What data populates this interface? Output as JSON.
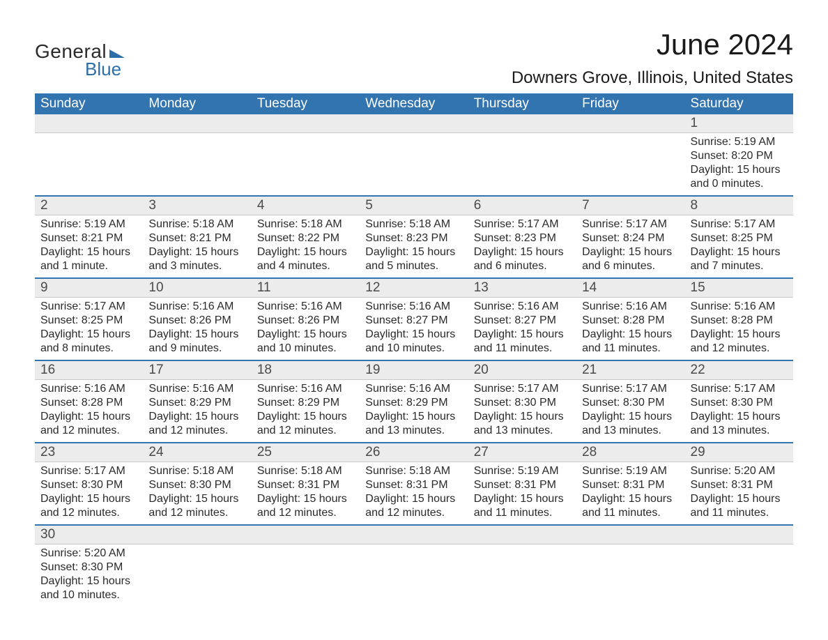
{
  "logo": {
    "text_top": "General",
    "text_bottom": "Blue",
    "accent_color": "#2d6fa8"
  },
  "title": "June 2024",
  "location": "Downers Grove, Illinois, United States",
  "colors": {
    "header_bg": "#3274b0",
    "header_text": "#ffffff",
    "daynum_bg": "#ececec",
    "row_border": "#3274b0",
    "body_text": "#2a2a2a"
  },
  "weekdays": [
    "Sunday",
    "Monday",
    "Tuesday",
    "Wednesday",
    "Thursday",
    "Friday",
    "Saturday"
  ],
  "weeks": [
    [
      null,
      null,
      null,
      null,
      null,
      null,
      {
        "n": "1",
        "sunrise": "5:19 AM",
        "sunset": "8:20 PM",
        "daylight": "15 hours and 0 minutes."
      }
    ],
    [
      {
        "n": "2",
        "sunrise": "5:19 AM",
        "sunset": "8:21 PM",
        "daylight": "15 hours and 1 minute."
      },
      {
        "n": "3",
        "sunrise": "5:18 AM",
        "sunset": "8:21 PM",
        "daylight": "15 hours and 3 minutes."
      },
      {
        "n": "4",
        "sunrise": "5:18 AM",
        "sunset": "8:22 PM",
        "daylight": "15 hours and 4 minutes."
      },
      {
        "n": "5",
        "sunrise": "5:18 AM",
        "sunset": "8:23 PM",
        "daylight": "15 hours and 5 minutes."
      },
      {
        "n": "6",
        "sunrise": "5:17 AM",
        "sunset": "8:23 PM",
        "daylight": "15 hours and 6 minutes."
      },
      {
        "n": "7",
        "sunrise": "5:17 AM",
        "sunset": "8:24 PM",
        "daylight": "15 hours and 6 minutes."
      },
      {
        "n": "8",
        "sunrise": "5:17 AM",
        "sunset": "8:25 PM",
        "daylight": "15 hours and 7 minutes."
      }
    ],
    [
      {
        "n": "9",
        "sunrise": "5:17 AM",
        "sunset": "8:25 PM",
        "daylight": "15 hours and 8 minutes."
      },
      {
        "n": "10",
        "sunrise": "5:16 AM",
        "sunset": "8:26 PM",
        "daylight": "15 hours and 9 minutes."
      },
      {
        "n": "11",
        "sunrise": "5:16 AM",
        "sunset": "8:26 PM",
        "daylight": "15 hours and 10 minutes."
      },
      {
        "n": "12",
        "sunrise": "5:16 AM",
        "sunset": "8:27 PM",
        "daylight": "15 hours and 10 minutes."
      },
      {
        "n": "13",
        "sunrise": "5:16 AM",
        "sunset": "8:27 PM",
        "daylight": "15 hours and 11 minutes."
      },
      {
        "n": "14",
        "sunrise": "5:16 AM",
        "sunset": "8:28 PM",
        "daylight": "15 hours and 11 minutes."
      },
      {
        "n": "15",
        "sunrise": "5:16 AM",
        "sunset": "8:28 PM",
        "daylight": "15 hours and 12 minutes."
      }
    ],
    [
      {
        "n": "16",
        "sunrise": "5:16 AM",
        "sunset": "8:28 PM",
        "daylight": "15 hours and 12 minutes."
      },
      {
        "n": "17",
        "sunrise": "5:16 AM",
        "sunset": "8:29 PM",
        "daylight": "15 hours and 12 minutes."
      },
      {
        "n": "18",
        "sunrise": "5:16 AM",
        "sunset": "8:29 PM",
        "daylight": "15 hours and 12 minutes."
      },
      {
        "n": "19",
        "sunrise": "5:16 AM",
        "sunset": "8:29 PM",
        "daylight": "15 hours and 13 minutes."
      },
      {
        "n": "20",
        "sunrise": "5:17 AM",
        "sunset": "8:30 PM",
        "daylight": "15 hours and 13 minutes."
      },
      {
        "n": "21",
        "sunrise": "5:17 AM",
        "sunset": "8:30 PM",
        "daylight": "15 hours and 13 minutes."
      },
      {
        "n": "22",
        "sunrise": "5:17 AM",
        "sunset": "8:30 PM",
        "daylight": "15 hours and 13 minutes."
      }
    ],
    [
      {
        "n": "23",
        "sunrise": "5:17 AM",
        "sunset": "8:30 PM",
        "daylight": "15 hours and 12 minutes."
      },
      {
        "n": "24",
        "sunrise": "5:18 AM",
        "sunset": "8:30 PM",
        "daylight": "15 hours and 12 minutes."
      },
      {
        "n": "25",
        "sunrise": "5:18 AM",
        "sunset": "8:31 PM",
        "daylight": "15 hours and 12 minutes."
      },
      {
        "n": "26",
        "sunrise": "5:18 AM",
        "sunset": "8:31 PM",
        "daylight": "15 hours and 12 minutes."
      },
      {
        "n": "27",
        "sunrise": "5:19 AM",
        "sunset": "8:31 PM",
        "daylight": "15 hours and 11 minutes."
      },
      {
        "n": "28",
        "sunrise": "5:19 AM",
        "sunset": "8:31 PM",
        "daylight": "15 hours and 11 minutes."
      },
      {
        "n": "29",
        "sunrise": "5:20 AM",
        "sunset": "8:31 PM",
        "daylight": "15 hours and 11 minutes."
      }
    ],
    [
      {
        "n": "30",
        "sunrise": "5:20 AM",
        "sunset": "8:30 PM",
        "daylight": "15 hours and 10 minutes."
      },
      null,
      null,
      null,
      null,
      null,
      null
    ]
  ],
  "labels": {
    "sunrise": "Sunrise:",
    "sunset": "Sunset:",
    "daylight": "Daylight:"
  }
}
